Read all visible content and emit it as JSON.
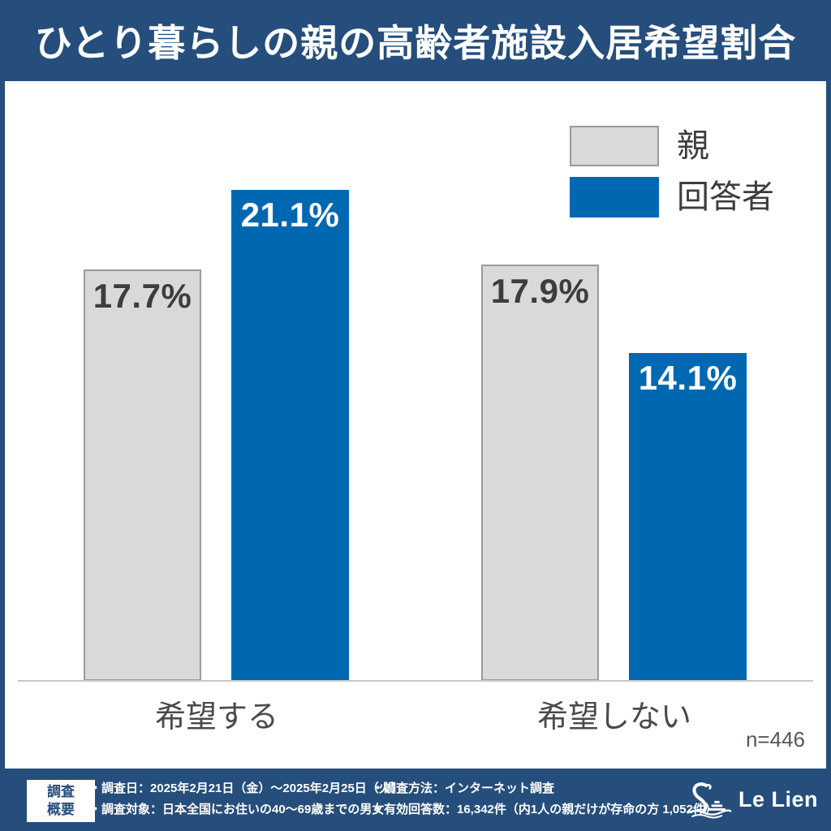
{
  "page": {
    "title": "ひとり暮らしの親の高齢者施設入居希望割合"
  },
  "colors": {
    "frame_blue": "#254e7c",
    "bar_blue": "#0068b0",
    "bar_gray": "#d9d9d9",
    "bar_gray_border": "#9a9a9a",
    "dark_label": "#3d3d3d",
    "axis_line": "#c9c9c9"
  },
  "chart_data": {
    "type": "bar",
    "title": "ひとり暮らしの親の高齢者施設入居希望割合",
    "categories": [
      "希望する",
      "希望しない"
    ],
    "series": [
      {
        "key": "parent",
        "name": "親",
        "values": [
          17.7,
          17.9
        ],
        "color": "#d9d9d9",
        "border_color": "#9a9a9a",
        "label_color": "#3d3d3d"
      },
      {
        "key": "respondent",
        "name": "回答者",
        "values": [
          21.1,
          14.1
        ],
        "color": "#0068b0",
        "border_color": null,
        "label_color": "#ffffff"
      }
    ],
    "value_suffix": "%",
    "ylim": [
      0,
      25.8
    ],
    "grid": false,
    "legend_position": "top-right",
    "sample_size_note": "n=446"
  },
  "footer": {
    "box_label_line1": "調査",
    "box_label_line2": "概要",
    "items_col1": [
      "・調査日：2025年2月21日（金）～2025年2月25日（火）",
      "・調査対象：日本全国にお住いの40～69歳までの男女"
    ],
    "items_col2": [
      "・調査方法：インターネット調査",
      "・有効回答数：16,342件（内1人の親だけが存命の方 1,052件）"
    ],
    "logo_text": "Le Lien"
  }
}
